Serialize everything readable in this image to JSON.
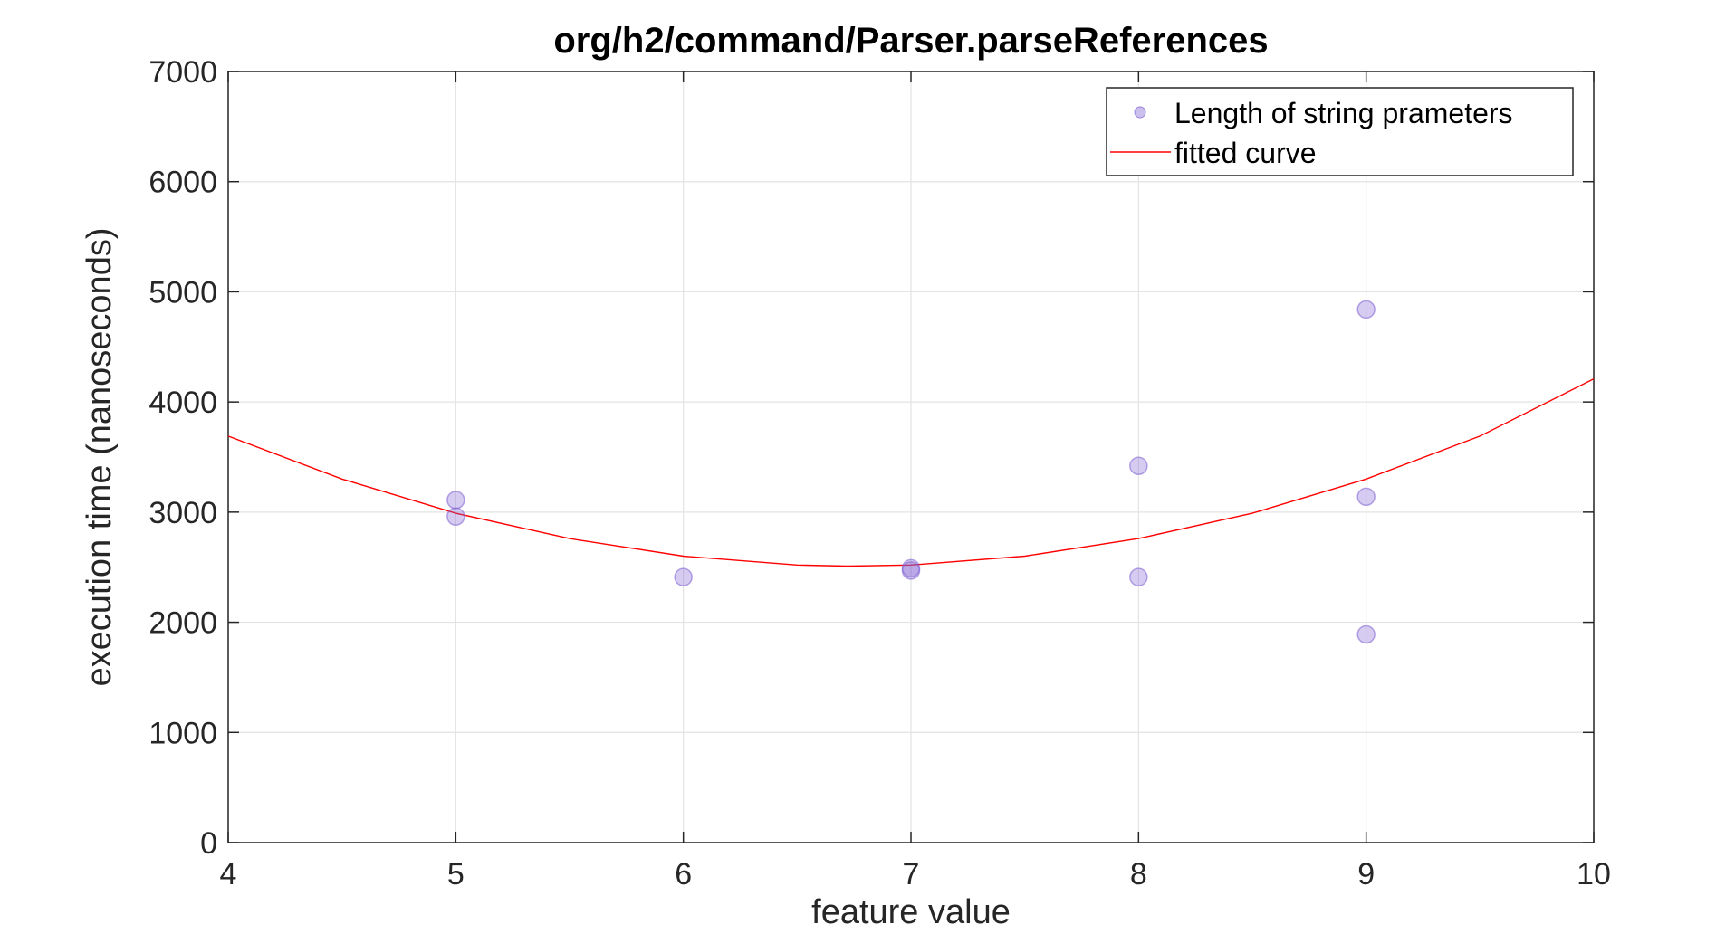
{
  "chart_data": {
    "type": "scatter",
    "title": "org/h2/command/Parser.parseReferences",
    "xlabel": "feature value",
    "ylabel": "execution time (nanoseconds)",
    "xlim": [
      4,
      10
    ],
    "ylim": [
      0,
      7000
    ],
    "xticks": [
      "4",
      "5",
      "6",
      "7",
      "8",
      "9",
      "10"
    ],
    "yticks": [
      "0",
      "1000",
      "2000",
      "3000",
      "4000",
      "5000",
      "6000",
      "7000"
    ],
    "grid": true,
    "legend_position": "top-right",
    "legend": [
      {
        "label": "Length of string prameters",
        "kind": "marker"
      },
      {
        "label": "fitted curve",
        "kind": "line"
      }
    ],
    "series": [
      {
        "name": "Length of string prameters",
        "type": "scatter",
        "color": "#7E5FD2",
        "points": [
          {
            "x": 5,
            "y": 3110
          },
          {
            "x": 5,
            "y": 2960
          },
          {
            "x": 6,
            "y": 2410
          },
          {
            "x": 7,
            "y": 2490
          },
          {
            "x": 7,
            "y": 2470
          },
          {
            "x": 8,
            "y": 3420
          },
          {
            "x": 8,
            "y": 2410
          },
          {
            "x": 9,
            "y": 4840
          },
          {
            "x": 9,
            "y": 3140
          },
          {
            "x": 9,
            "y": 1890
          }
        ]
      },
      {
        "name": "fitted curve",
        "type": "line",
        "color": "#FF0000",
        "points": [
          {
            "x": 4,
            "y": 3690
          },
          {
            "x": 4.5,
            "y": 3300
          },
          {
            "x": 5,
            "y": 2990
          },
          {
            "x": 5.5,
            "y": 2760
          },
          {
            "x": 6,
            "y": 2600
          },
          {
            "x": 6.5,
            "y": 2520
          },
          {
            "x": 6.72,
            "y": 2510
          },
          {
            "x": 7,
            "y": 2520
          },
          {
            "x": 7.5,
            "y": 2600
          },
          {
            "x": 8,
            "y": 2760
          },
          {
            "x": 8.5,
            "y": 2990
          },
          {
            "x": 9,
            "y": 3300
          },
          {
            "x": 9.5,
            "y": 3690
          },
          {
            "x": 10,
            "y": 4210
          }
        ]
      }
    ]
  }
}
